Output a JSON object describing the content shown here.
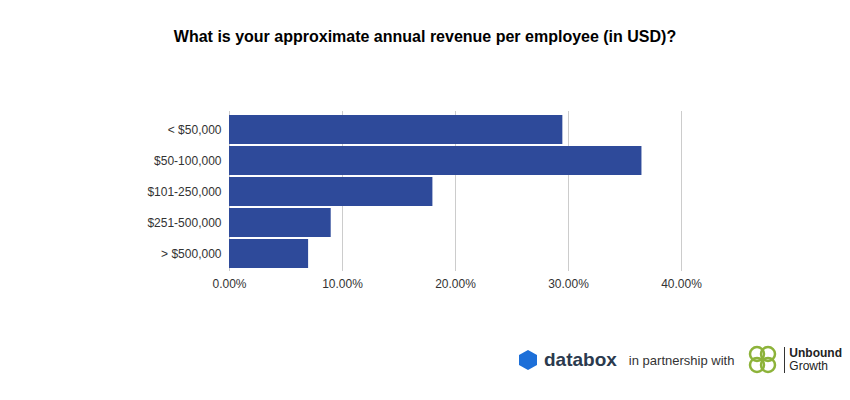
{
  "chart_data": {
    "type": "bar",
    "orientation": "horizontal",
    "title": "What is your approximate annual revenue per employee (in USD)?",
    "categories": [
      "< $50,000",
      "$50-100,000",
      "$101-250,000",
      "$251-500,000",
      "> $500,000"
    ],
    "values": [
      29.5,
      36.5,
      18,
      9,
      7
    ],
    "color": "#2e4a9a",
    "xlim": [
      0,
      40
    ],
    "xticks": [
      {
        "value": 0,
        "label": "0.00%"
      },
      {
        "value": 10,
        "label": "10.00%"
      },
      {
        "value": 20,
        "label": "20.00%"
      },
      {
        "value": 30,
        "label": "30.00%"
      },
      {
        "value": 40,
        "label": "40.00%"
      }
    ],
    "grid": true,
    "annotations": [
      "databox",
      "in partnership with",
      "Unbound",
      "Growth"
    ]
  }
}
